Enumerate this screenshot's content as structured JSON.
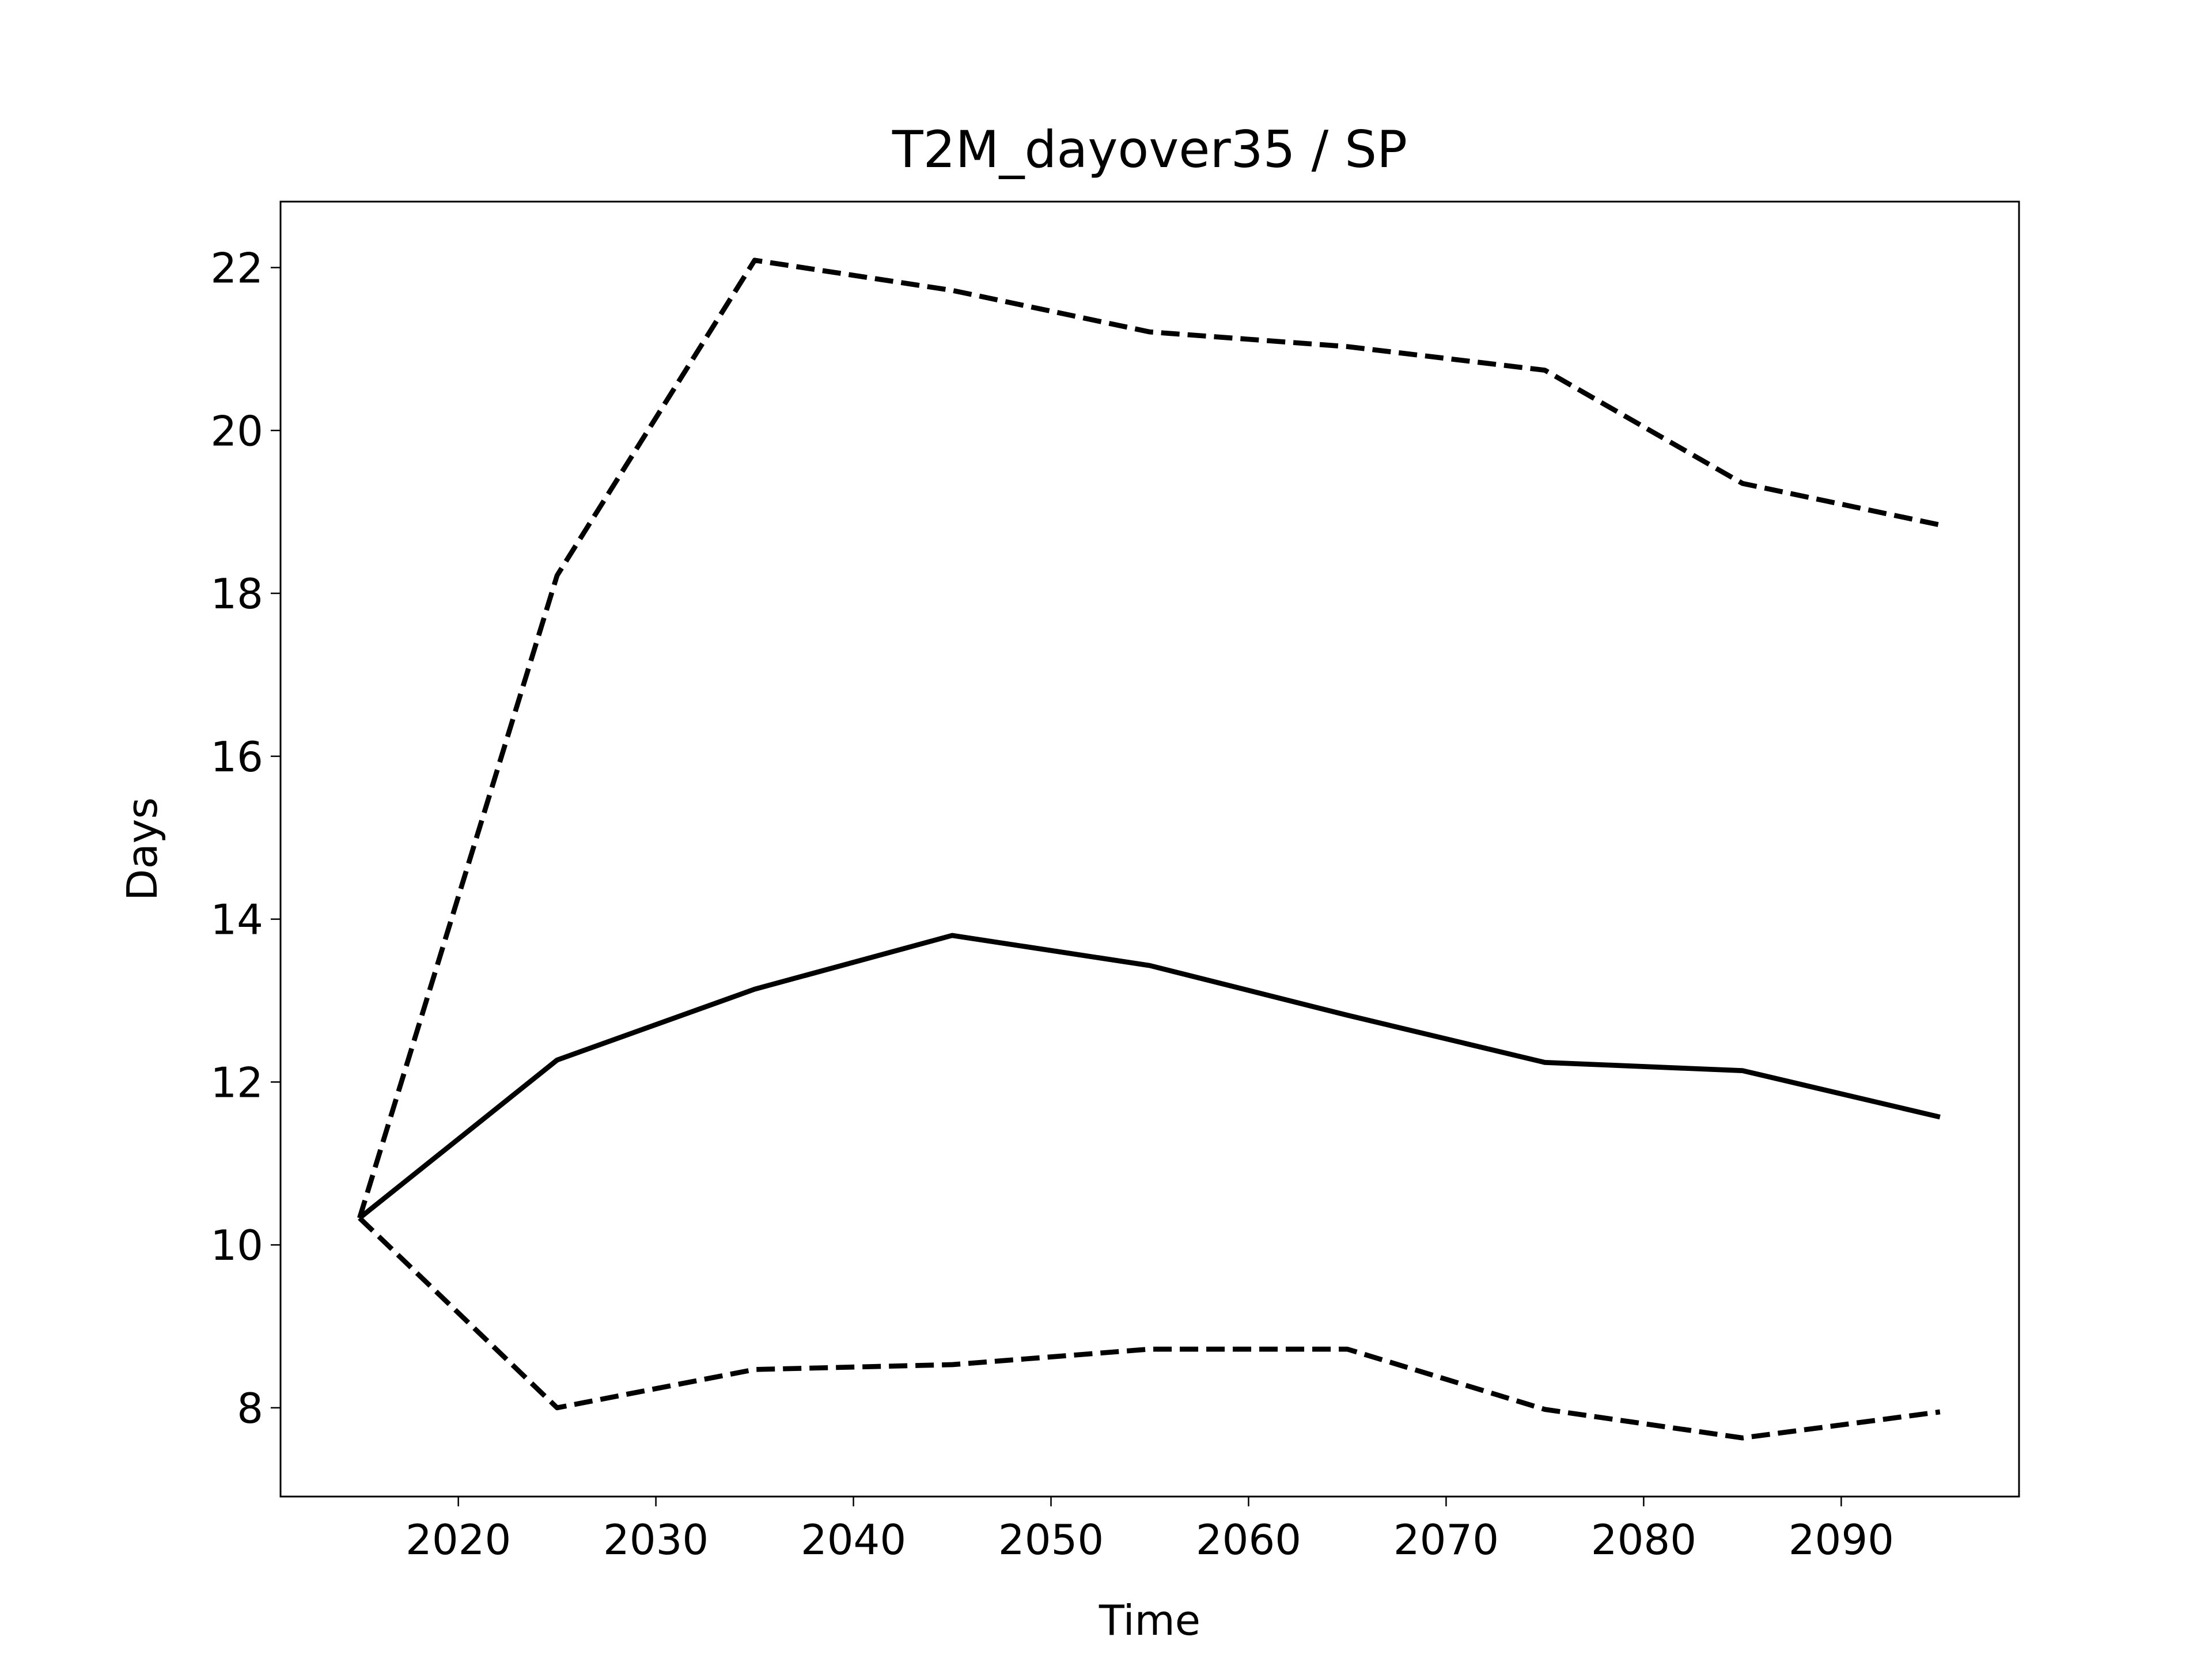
{
  "chart_data": {
    "type": "line",
    "title": "T2M_dayover35 / SP",
    "xlabel": "Time",
    "ylabel": "Days",
    "x": [
      2015,
      2025,
      2035,
      2045,
      2055,
      2065,
      2075,
      2085,
      2095
    ],
    "series": [
      {
        "color": "#000000",
        "dashed": true,
        "values": [
          10.33,
          18.22,
          22.09,
          21.72,
          21.21,
          21.03,
          20.74,
          19.35,
          18.84
        ]
      },
      {
        "color": "#000000",
        "dashed": false,
        "values": [
          10.33,
          12.27,
          13.14,
          13.8,
          13.43,
          12.82,
          12.24,
          12.14,
          11.57
        ]
      },
      {
        "color": "#000000",
        "dashed": true,
        "values": [
          10.33,
          8.0,
          8.47,
          8.53,
          8.72,
          8.72,
          7.98,
          7.63,
          7.95
        ]
      }
    ],
    "xlim": [
      2011,
      2099
    ],
    "xticks": [
      2020,
      2030,
      2040,
      2050,
      2060,
      2070,
      2080,
      2090
    ],
    "ylim": [
      6.91,
      22.81
    ],
    "yticks": [
      8,
      10,
      12,
      14,
      16,
      18,
      20,
      22
    ],
    "grid": false
  }
}
